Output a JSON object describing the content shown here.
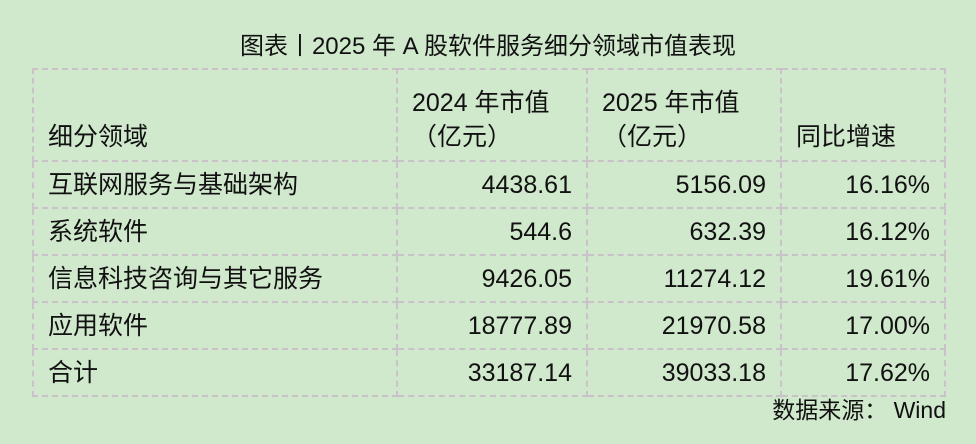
{
  "title": "图表丨2025 年 A 股软件服务细分领域市值表现",
  "table": {
    "headers": [
      "细分领域",
      "2024 年市值（亿元）",
      "2025 年市值（亿元）",
      "同比增速"
    ],
    "rows": [
      [
        "互联网服务与基础架构",
        "4438.61",
        "5156.09",
        "16.16%"
      ],
      [
        "系统软件",
        "544.6",
        "632.39",
        "16.12%"
      ],
      [
        "信息科技咨询与其它服务",
        "9426.05",
        "11274.12",
        "19.61%"
      ],
      [
        "应用软件",
        "18777.89",
        "21970.58",
        "17.00%"
      ],
      [
        "合计",
        "33187.14",
        "39033.18",
        "17.62%"
      ]
    ]
  },
  "source": "数据来源： Wind",
  "colors": {
    "background": "#d0e8cc",
    "border": "#c9c3c9"
  }
}
